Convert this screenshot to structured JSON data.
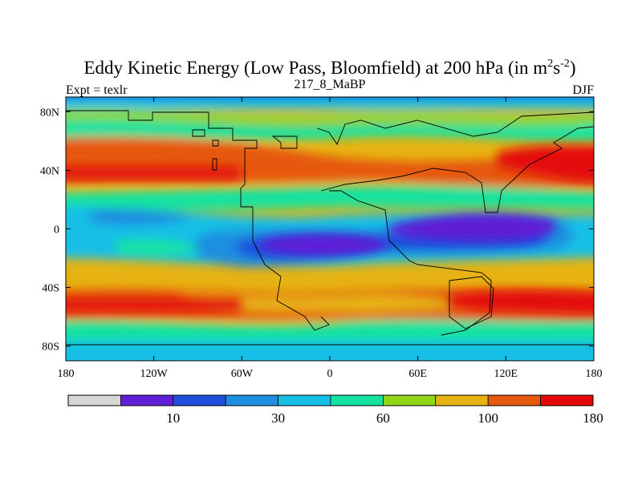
{
  "chart_data": {
    "type": "heatmap",
    "title": {
      "main": "Eddy Kinetic Energy (Low Pass, Bloomfield) at 200 hPa (in m",
      "sup1": "2",
      "mid": "s",
      "sup2": "-2",
      "close": ")"
    },
    "subtitle_left": "Expt = texlr",
    "subtitle_center": "217_8_MaBP",
    "subtitle_right": "DJF",
    "x_axis": {
      "range": [
        -180,
        180
      ],
      "ticks": [
        {
          "value": -180,
          "label": "180"
        },
        {
          "value": -120,
          "label": "120W"
        },
        {
          "value": -60,
          "label": "60W"
        },
        {
          "value": 0,
          "label": "0"
        },
        {
          "value": 60,
          "label": "60E"
        },
        {
          "value": 120,
          "label": "120E"
        },
        {
          "value": 180,
          "label": "180"
        }
      ]
    },
    "y_axis": {
      "range": [
        -90,
        90
      ],
      "ticks": [
        {
          "value": 80,
          "label": "80N"
        },
        {
          "value": 40,
          "label": "40N"
        },
        {
          "value": 0,
          "label": "0"
        },
        {
          "value": -40,
          "label": "40S"
        },
        {
          "value": -80,
          "label": "80S"
        }
      ]
    },
    "colorbar": {
      "colors": [
        "#d6d6d6",
        "#5f1fd6",
        "#1f4fdc",
        "#1e8fe0",
        "#15bfe6",
        "#13e2a0",
        "#8ed616",
        "#e6b312",
        "#e6580e",
        "#e4080a"
      ],
      "labels": [
        {
          "boundary": 2,
          "text": "10"
        },
        {
          "boundary": 4,
          "text": "30"
        },
        {
          "boundary": 6,
          "text": "60"
        },
        {
          "boundary": 8,
          "text": "100"
        },
        {
          "boundary": 10,
          "text": "180"
        }
      ]
    },
    "field_bands": [
      {
        "name": "northern-storm-track-band",
        "lat_top": 42,
        "lat_bottom": 34,
        "color": "#e4080a"
      },
      {
        "name": "tropical-low-band",
        "lat_top": -4,
        "lat_bottom": -18,
        "color": "#5f1fd6"
      },
      {
        "name": "southern-storm-track-band",
        "lat_top": -48,
        "lat_bottom": -56,
        "color": "#e4080a"
      }
    ]
  }
}
